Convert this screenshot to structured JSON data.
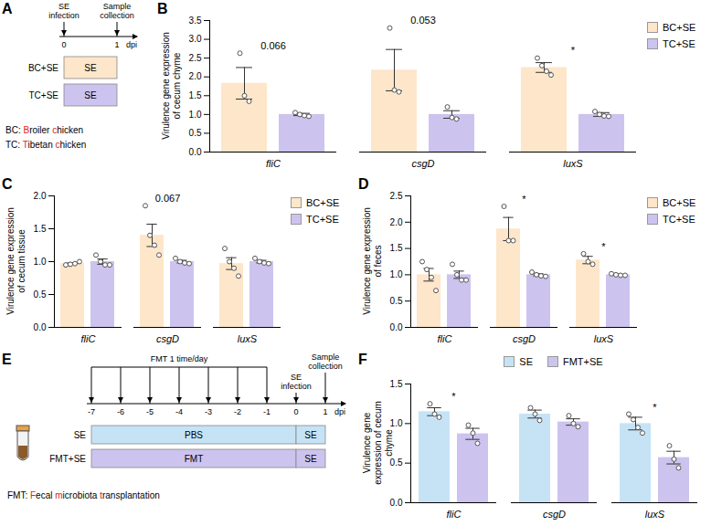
{
  "chart_data": [
    {
      "panel_label": "B",
      "type": "bar",
      "y_label": "Virulence gene expression of cecum chyme",
      "categories": [
        "fliC",
        "csgD",
        "luxS"
      ],
      "ylim": [
        0,
        3.5
      ],
      "yticks": [
        {
          "value": 0,
          "label": "0.0"
        },
        {
          "value": 0.5,
          "label": "0.5"
        },
        {
          "value": 1,
          "label": "1.0"
        },
        {
          "value": 1.5,
          "label": "1.5"
        },
        {
          "value": 2,
          "label": "2.0"
        },
        {
          "value": 2.5,
          "label": "2.5"
        },
        {
          "value": 3,
          "label": "3.0"
        },
        {
          "value": 3.5,
          "label": "3.5"
        }
      ],
      "legend": "right",
      "series": [
        {
          "name": "BC+SE",
          "color": "#fde6c9",
          "values": [
            1.83,
            2.18,
            2.25
          ],
          "errors": [
            0.42,
            0.55,
            0.13
          ],
          "points": [
            [
              2.63,
              1.5,
              1.35
            ],
            [
              3.3,
              1.65,
              1.6
            ],
            [
              2.5,
              2.3,
              2.15,
              2.05
            ]
          ]
        },
        {
          "name": "TC+SE",
          "color": "#cdc3ef",
          "values": [
            1.0,
            1.0,
            1.0
          ],
          "errors": [
            0.03,
            0.1,
            0.05
          ],
          "points": [
            [
              1.05,
              1.0,
              0.97,
              0.95
            ],
            [
              1.2,
              0.92,
              0.88
            ],
            [
              1.08,
              1.0,
              0.96,
              0.95
            ]
          ]
        }
      ],
      "annotations": [
        {
          "category": "fliC",
          "text": "0.066"
        },
        {
          "category": "csgD",
          "text": "0.053"
        },
        {
          "category": "luxS",
          "text": "*"
        }
      ]
    },
    {
      "panel_label": "C",
      "type": "bar",
      "y_label": "Virulence gene expression of cecum tissue",
      "categories": [
        "fliC",
        "csgD",
        "luxS"
      ],
      "ylim": [
        0,
        2
      ],
      "yticks": [
        {
          "value": 0,
          "label": "0.0"
        },
        {
          "value": 0.5,
          "label": "0.5"
        },
        {
          "value": 1,
          "label": "1.0"
        },
        {
          "value": 1.5,
          "label": "1.5"
        },
        {
          "value": 2,
          "label": "2.0"
        }
      ],
      "legend": "right",
      "series": [
        {
          "name": "BC+SE",
          "color": "#fde6c9",
          "values": [
            0.97,
            1.4,
            0.97
          ],
          "errors": [
            0.01,
            0.17,
            0.09
          ],
          "points": [
            [
              0.95,
              0.96,
              0.97,
              1.0
            ],
            [
              1.85,
              1.4,
              1.25,
              1.1
            ],
            [
              1.2,
              1.0,
              0.9,
              0.78
            ]
          ]
        },
        {
          "name": "TC+SE",
          "color": "#cdc3ef",
          "values": [
            1.0,
            1.0,
            1.0
          ],
          "errors": [
            0.04,
            0.02,
            0.02
          ],
          "points": [
            [
              1.1,
              1.0,
              0.95,
              0.95
            ],
            [
              1.05,
              1.0,
              0.98,
              0.97
            ],
            [
              1.05,
              1.0,
              0.98,
              0.97
            ]
          ]
        }
      ],
      "annotations": [
        {
          "category": "csgD",
          "text": "0.067"
        }
      ]
    },
    {
      "panel_label": "D",
      "type": "bar",
      "y_label": "Virulence gene expression of feces",
      "categories": [
        "fliC",
        "csgD",
        "luxS"
      ],
      "ylim": [
        0,
        2.5
      ],
      "yticks": [
        {
          "value": 0,
          "label": "0.0"
        },
        {
          "value": 0.5,
          "label": "0.5"
        },
        {
          "value": 1,
          "label": "1.0"
        },
        {
          "value": 1.5,
          "label": "1.5"
        },
        {
          "value": 2,
          "label": "2.0"
        },
        {
          "value": 2.5,
          "label": "2.5"
        }
      ],
      "legend": "right",
      "series": [
        {
          "name": "BC+SE",
          "color": "#fde6c9",
          "values": [
            1.0,
            1.87,
            1.28
          ],
          "errors": [
            0.12,
            0.22,
            0.07
          ],
          "points": [
            [
              1.25,
              1.1,
              0.95,
              0.7
            ],
            [
              2.3,
              1.65,
              1.65
            ],
            [
              1.4,
              1.25,
              1.2
            ]
          ]
        },
        {
          "name": "TC+SE",
          "color": "#cdc3ef",
          "values": [
            1.0,
            1.0,
            1.0
          ],
          "errors": [
            0.07,
            0.02,
            0.01
          ],
          "points": [
            [
              1.2,
              1.0,
              0.9,
              0.9
            ],
            [
              1.05,
              1.0,
              0.98,
              0.97
            ],
            [
              1.02,
              1.0,
              0.99,
              0.99
            ]
          ]
        }
      ],
      "annotations": [
        {
          "category": "csgD",
          "text": "*"
        },
        {
          "category": "luxS",
          "text": "*"
        }
      ]
    },
    {
      "panel_label": "F",
      "type": "bar",
      "y_label": "Virulence gene expression of cecum chyme",
      "categories": [
        "fliC",
        "csgD",
        "luxS"
      ],
      "ylim": [
        0,
        1.5
      ],
      "yticks": [
        {
          "value": 0,
          "label": "0.0"
        },
        {
          "value": 0.5,
          "label": "0.5"
        },
        {
          "value": 1,
          "label": "1.0"
        },
        {
          "value": 1.5,
          "label": "1.5"
        }
      ],
      "legend": "top",
      "series": [
        {
          "name": "SE",
          "color": "#c6e3f6",
          "values": [
            1.15,
            1.12,
            1.0
          ],
          "errors": [
            0.05,
            0.05,
            0.08
          ],
          "points": [
            [
              1.25,
              1.12,
              1.08
            ],
            [
              1.2,
              1.12,
              1.04
            ],
            [
              1.12,
              1.05,
              0.95,
              0.88
            ]
          ]
        },
        {
          "name": "FMT+SE",
          "color": "#cdc3ef",
          "values": [
            0.87,
            1.02,
            0.57
          ],
          "errors": [
            0.07,
            0.04,
            0.08
          ],
          "points": [
            [
              0.98,
              0.88,
              0.75
            ],
            [
              1.1,
              1.0,
              0.96
            ],
            [
              0.72,
              0.55,
              0.44
            ]
          ]
        }
      ],
      "annotations": [
        {
          "category": "fliC",
          "text": "*"
        },
        {
          "category": "luxS",
          "text": "*"
        }
      ]
    }
  ],
  "diagrams": [
    {
      "panel_label": "A",
      "timeline": {
        "events": [
          {
            "day": 0,
            "text": "SE infection"
          },
          {
            "day": 1,
            "text": "Sample collection"
          }
        ],
        "ticks": [
          0,
          1
        ],
        "unit": "dpi"
      },
      "rows": [
        {
          "label": "BC+SE",
          "color": "#fde6c9",
          "segments": [
            {
              "from": 0,
              "to": 1,
              "text": "SE"
            }
          ]
        },
        {
          "label": "TC+SE",
          "color": "#cdc3ef",
          "segments": [
            {
              "from": 0,
              "to": 1,
              "text": "SE"
            }
          ]
        }
      ],
      "notes": [
        "BC: Broiler chicken",
        "TC: Tibetan chicken"
      ]
    },
    {
      "panel_label": "E",
      "timeline": {
        "events": [
          {
            "day": 0,
            "text": "SE infection"
          },
          {
            "day": 1,
            "text": "Sample collection"
          }
        ],
        "repeat": {
          "from": -7,
          "to": -1,
          "text": "FMT 1 time/day"
        },
        "ticks": [
          -7,
          -6,
          -5,
          -4,
          -3,
          -2,
          -1,
          0,
          1
        ],
        "unit": "dpi"
      },
      "rows": [
        {
          "label": "SE",
          "color": "#c6e3f6",
          "segments": [
            {
              "from": -7,
              "to": 0,
              "text": "PBS"
            },
            {
              "from": 0,
              "to": 1,
              "text": "SE"
            }
          ]
        },
        {
          "label": "FMT+SE",
          "color": "#cdc3ef",
          "segments": [
            {
              "from": -7,
              "to": 0,
              "text": "FMT"
            },
            {
              "from": 0,
              "to": 1,
              "text": "SE"
            }
          ]
        }
      ],
      "notes": [
        "FMT: Fecal microbiota transplantation"
      ]
    }
  ]
}
